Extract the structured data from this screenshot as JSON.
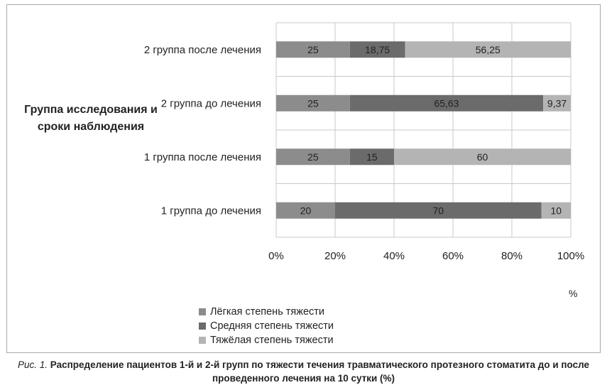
{
  "chart_data": {
    "type": "bar",
    "orientation": "horizontal",
    "stacked": true,
    "categories": [
      "2 группа после лечения",
      "2 группа до лечения",
      "1 группа после лечения",
      "1 группа до лечения"
    ],
    "series": [
      {
        "name": "Лёгкая степень тяжести",
        "color": "#8c8c8c",
        "values": [
          25,
          25,
          25,
          20
        ],
        "labels": [
          "25",
          "25",
          "25",
          "20"
        ]
      },
      {
        "name": "Средняя степень тяжести",
        "color": "#6b6b6b",
        "values": [
          18.75,
          65.63,
          15,
          70
        ],
        "labels": [
          "18,75",
          "65,63",
          "15",
          "70"
        ]
      },
      {
        "name": "Тяжёлая степень тяжести",
        "color": "#b4b4b4",
        "values": [
          56.25,
          9.37,
          60,
          10
        ],
        "labels": [
          "56,25",
          "9,37",
          "60",
          "10"
        ]
      }
    ],
    "xlim": [
      0,
      100
    ],
    "xticks": [
      "0%",
      "20%",
      "40%",
      "60%",
      "80%",
      "100%"
    ],
    "xlabel": "%",
    "ylabel": "Группа исследования и сроки наблюдения",
    "grid": true,
    "legend_position": "bottom"
  },
  "caption": {
    "figure_label": "Рис. 1.",
    "text": "Распределение пациентов 1-й и 2-й групп по тяжести течения травматического протезного стоматита до и после проведенного лечения на 10 сутки (%)"
  }
}
